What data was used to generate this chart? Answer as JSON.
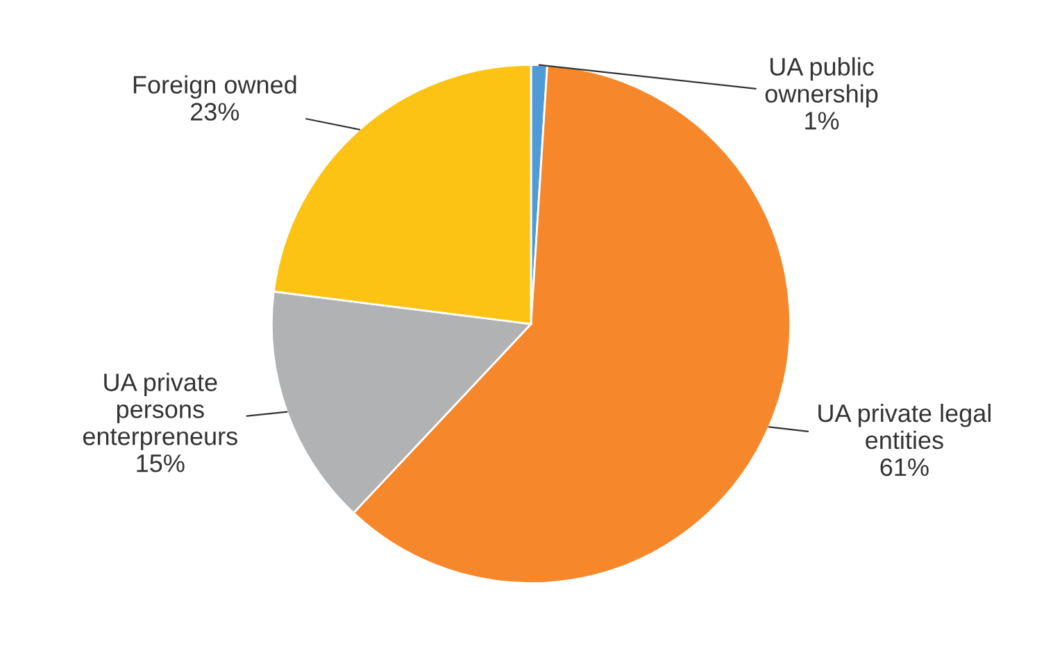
{
  "chart_data": {
    "type": "pie",
    "categories": [
      "UA public\nownership",
      "UA private legal\nentities",
      "UA private\npersons\nenterpreneurs",
      "Foreign owned"
    ],
    "values": [
      1,
      61,
      15,
      23
    ],
    "colors": [
      "#4f9bd8",
      "#f6872b",
      "#b1b2b4",
      "#fdc314"
    ],
    "value_labels": [
      "1%",
      "61%",
      "15%",
      "23%"
    ]
  }
}
